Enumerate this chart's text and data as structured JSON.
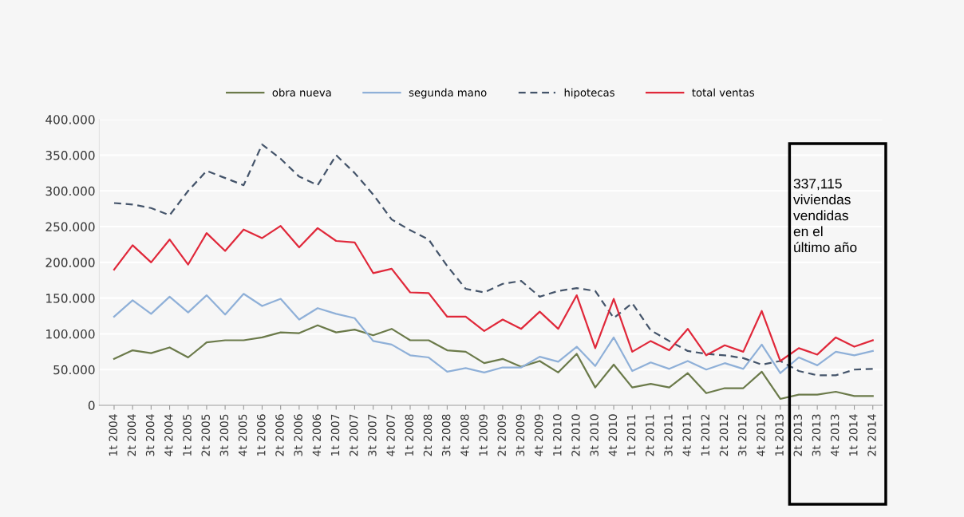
{
  "chart_data": {
    "type": "line",
    "categories": [
      "1t 2004",
      "2t 2004",
      "3t 2004",
      "4t 2004",
      "1t 2005",
      "2t 2005",
      "3t 2005",
      "4t 2005",
      "1t 2006",
      "2t 2006",
      "3t 2006",
      "4t 2006",
      "1t 2007",
      "2t 2007",
      "3t 2007",
      "4t 2007",
      "1t 2008",
      "2t 2008",
      "3t 2008",
      "4t 2008",
      "1t 2009",
      "2t 2009",
      "3t 2009",
      "4t 2009",
      "1t 2010",
      "2t 2010",
      "3t 2010",
      "4t 2010",
      "1t 2011",
      "2t 2011",
      "3t 2011",
      "4t 2011",
      "1t 2012",
      "2t 2012",
      "3t 2012",
      "4t 2012",
      "1t 2013",
      "2t 2013",
      "3t 2013",
      "4t 2013",
      "1t 2014",
      "2t 2014"
    ],
    "series": [
      {
        "name": "obra nueva",
        "color": "#6b7a4a",
        "line_style": "solid",
        "values": [
          65000,
          77000,
          73000,
          81000,
          67000,
          88000,
          91000,
          91000,
          95000,
          102000,
          101000,
          112000,
          102000,
          106000,
          98000,
          107000,
          91000,
          91000,
          77000,
          75000,
          59000,
          65000,
          54000,
          62000,
          46000,
          72000,
          25000,
          57000,
          25000,
          30000,
          25000,
          45000,
          17000,
          24000,
          24000,
          47000,
          9000,
          15000,
          15000,
          19000,
          13000,
          13000
        ]
      },
      {
        "name": "segunda mano",
        "color": "#8fb0d8",
        "line_style": "solid",
        "values": [
          124000,
          147000,
          128000,
          152000,
          130000,
          154000,
          127000,
          156000,
          139000,
          149000,
          120000,
          136000,
          128000,
          122000,
          90000,
          85000,
          70000,
          67000,
          47000,
          52000,
          46000,
          53000,
          53000,
          68000,
          61000,
          82000,
          55000,
          95000,
          48000,
          60000,
          51000,
          62000,
          50000,
          59000,
          51000,
          85000,
          45000,
          67000,
          56000,
          75000,
          70000,
          76000
        ]
      },
      {
        "name": "hipotecas",
        "color": "#44546a",
        "line_style": "dashed",
        "values": [
          283000,
          281000,
          276000,
          266000,
          300000,
          328000,
          318000,
          308000,
          365000,
          345000,
          320000,
          308000,
          350000,
          325000,
          295000,
          260000,
          245000,
          232000,
          195000,
          163000,
          158000,
          170000,
          174000,
          152000,
          160000,
          164000,
          160000,
          122000,
          143000,
          105000,
          90000,
          76000,
          72000,
          70000,
          66000,
          57000,
          62000,
          48000,
          42000,
          42000,
          50000,
          51000
        ]
      },
      {
        "name": "total ventas",
        "color": "#e0283a",
        "line_style": "solid",
        "values": [
          190000,
          224000,
          200000,
          232000,
          197000,
          241000,
          216000,
          246000,
          234000,
          251000,
          221000,
          248000,
          230000,
          228000,
          185000,
          191000,
          158000,
          157000,
          124000,
          124000,
          104000,
          120000,
          107000,
          131000,
          107000,
          154000,
          80000,
          149000,
          75000,
          90000,
          77000,
          107000,
          70000,
          84000,
          75000,
          132000,
          62000,
          80000,
          71000,
          95000,
          82000,
          91000
        ]
      }
    ],
    "ylim": [
      0,
      400000
    ],
    "yticks": [
      {
        "value": 0,
        "label": "0"
      },
      {
        "value": 50000,
        "label": "50.000"
      },
      {
        "value": 100000,
        "label": "100.000"
      },
      {
        "value": 150000,
        "label": "150.000"
      },
      {
        "value": 200000,
        "label": "200.000"
      },
      {
        "value": 250000,
        "label": "250.000"
      },
      {
        "value": 300000,
        "label": "300.000"
      },
      {
        "value": 350000,
        "label": "350.000"
      },
      {
        "value": 400000,
        "label": "400.000"
      }
    ],
    "grid": "y",
    "legend": "top",
    "marker": "none",
    "annotations": [
      "337,115\nviviendas\nvendidas\nen el\núltimo año"
    ]
  }
}
